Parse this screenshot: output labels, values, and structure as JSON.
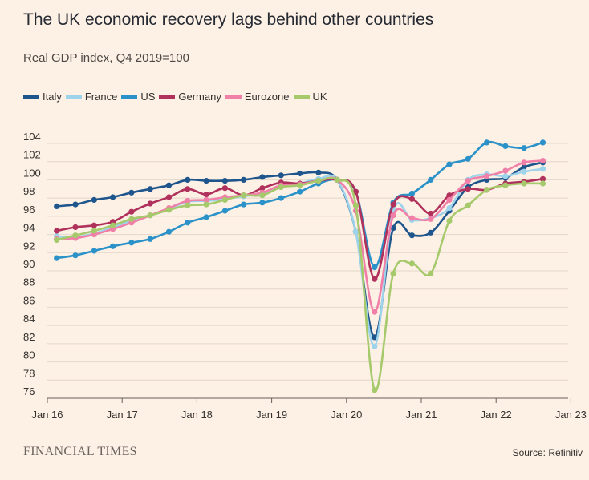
{
  "header": {
    "title": "The UK economic recovery lags behind other countries",
    "subtitle": "Real GDP index, Q4 2019=100"
  },
  "footer": {
    "brand": "FINANCIAL TIMES",
    "source": "Source: Refinitiv"
  },
  "chart_data": {
    "type": "line",
    "title": "The UK economic recovery lags behind other countries",
    "subtitle": "Real GDP index, Q4 2019=100",
    "xlabel": "",
    "ylabel": "",
    "ylim": [
      76,
      105
    ],
    "yticks": [
      76,
      78,
      80,
      82,
      84,
      86,
      88,
      90,
      92,
      94,
      96,
      98,
      100,
      102,
      104
    ],
    "xticks": [
      "Jan 16",
      "Jan 17",
      "Jan 18",
      "Jan 19",
      "Jan 20",
      "Jan 21",
      "Jan 22",
      "Jan 23"
    ],
    "grid": "horizontal",
    "legend_position": "top-left",
    "x": [
      "Q1 2016",
      "Q2 2016",
      "Q3 2016",
      "Q4 2016",
      "Q1 2017",
      "Q2 2017",
      "Q3 2017",
      "Q4 2017",
      "Q1 2018",
      "Q2 2018",
      "Q3 2018",
      "Q4 2018",
      "Q1 2019",
      "Q2 2019",
      "Q3 2019",
      "Q4 2019",
      "Q1 2020",
      "Q2 2020",
      "Q3 2020",
      "Q4 2020",
      "Q1 2021",
      "Q2 2021",
      "Q3 2021",
      "Q4 2021",
      "Q1 2022",
      "Q2 2022",
      "Q3 2022"
    ],
    "series": [
      {
        "name": "Italy",
        "color": "#1e558c",
        "values": [
          97.1,
          97.3,
          97.8,
          98.1,
          98.6,
          99.0,
          99.4,
          100.0,
          99.9,
          99.9,
          100.0,
          100.3,
          100.5,
          100.7,
          100.8,
          100.0,
          94.3,
          82.7,
          94.7,
          93.9,
          94.2,
          96.6,
          99.2,
          100.0,
          100.2,
          101.4,
          101.9
        ]
      },
      {
        "name": "France",
        "color": "#9dd3eb",
        "values": [
          93.8,
          93.7,
          94.1,
          94.8,
          95.5,
          96.1,
          96.8,
          97.6,
          97.7,
          97.9,
          98.2,
          98.5,
          99.2,
          99.6,
          100.1,
          100.0,
          94.3,
          81.7,
          96.6,
          95.6,
          95.8,
          96.9,
          100.0,
          100.6,
          100.4,
          100.9,
          101.2
        ]
      },
      {
        "name": "US",
        "color": "#2b91c9",
        "values": [
          91.4,
          91.7,
          92.2,
          92.7,
          93.1,
          93.5,
          94.3,
          95.3,
          95.9,
          96.6,
          97.3,
          97.5,
          98.0,
          98.7,
          99.6,
          100.0,
          98.7,
          90.4,
          97.5,
          98.5,
          100.0,
          101.7,
          102.3,
          104.1,
          103.7,
          103.5,
          104.1
        ]
      },
      {
        "name": "Germany",
        "color": "#b0315b",
        "values": [
          94.4,
          94.8,
          95.0,
          95.4,
          96.5,
          97.4,
          98.1,
          99.0,
          98.4,
          99.1,
          98.3,
          99.1,
          99.7,
          99.6,
          99.9,
          100.0,
          98.7,
          89.1,
          97.3,
          97.9,
          96.3,
          98.3,
          99.0,
          98.9,
          99.6,
          99.8,
          100.1
        ]
      },
      {
        "name": "Eurozone",
        "color": "#f080a8",
        "values": [
          93.5,
          93.6,
          94.0,
          94.6,
          95.3,
          96.1,
          96.9,
          97.7,
          97.8,
          98.1,
          98.3,
          98.6,
          99.4,
          99.5,
          99.9,
          100.0,
          96.6,
          85.5,
          96.1,
          95.8,
          95.7,
          97.8,
          99.9,
          100.4,
          101.0,
          101.9,
          102.1
        ]
      },
      {
        "name": "UK",
        "color": "#a5c96b",
        "values": [
          93.4,
          93.9,
          94.4,
          95.0,
          95.7,
          96.1,
          96.7,
          97.2,
          97.3,
          97.8,
          98.3,
          98.3,
          99.2,
          99.4,
          99.9,
          100.0,
          97.2,
          76.9,
          89.7,
          90.8,
          89.7,
          95.5,
          97.2,
          98.9,
          99.4,
          99.6,
          99.6
        ]
      }
    ]
  }
}
